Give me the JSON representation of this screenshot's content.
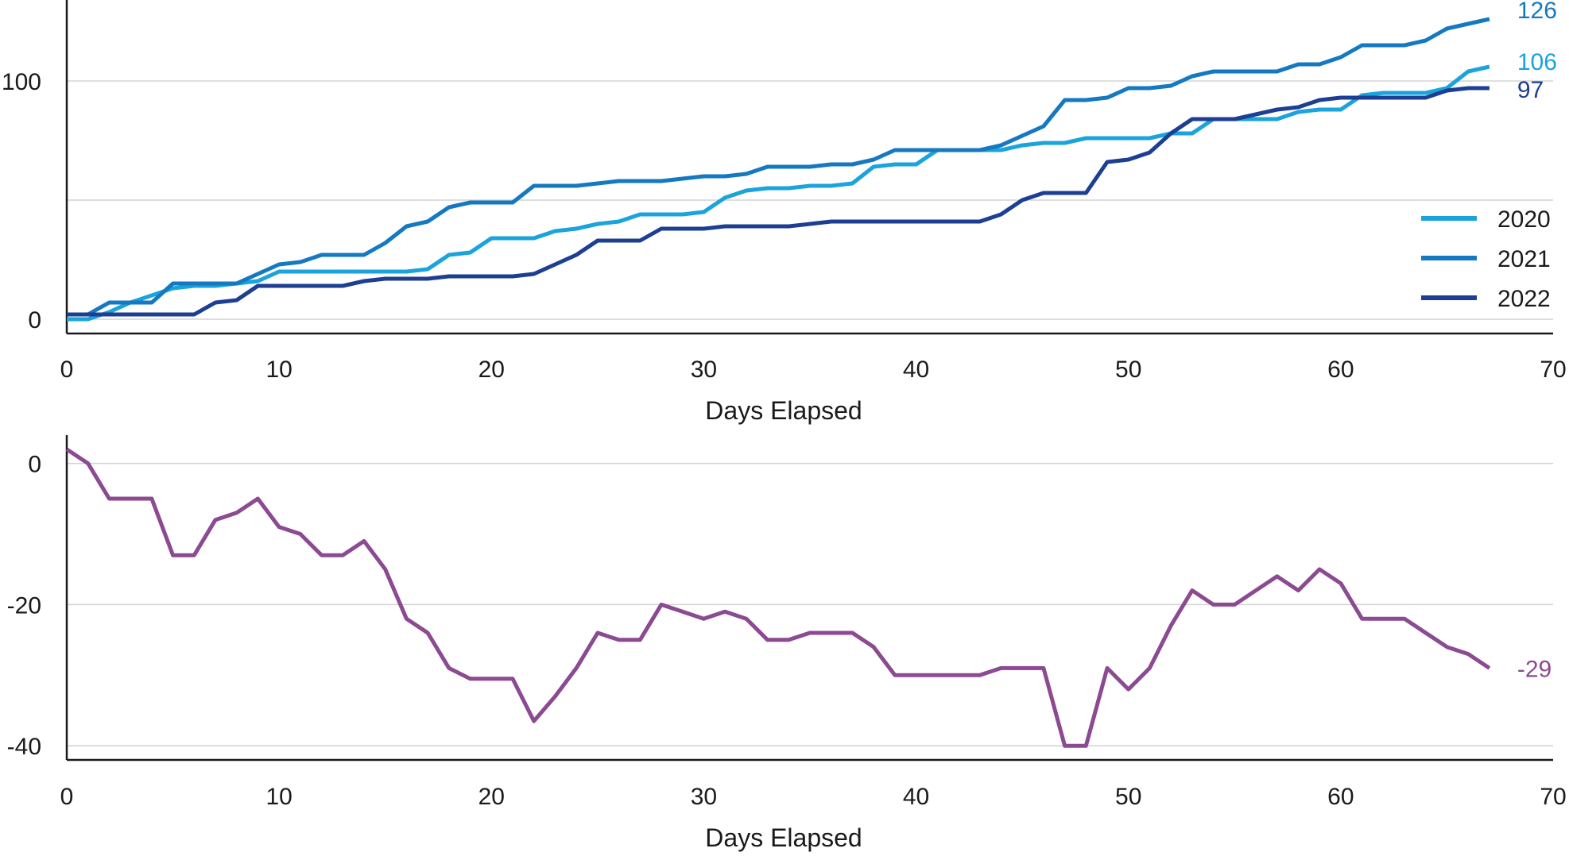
{
  "chart_data": [
    {
      "type": "line",
      "xlabel": "Days Elapsed",
      "ylabel": "",
      "xlim": [
        0,
        70
      ],
      "ylim": [
        -6,
        134
      ],
      "xticks": [
        0,
        10,
        20,
        30,
        40,
        50,
        60,
        70
      ],
      "yticks": [
        0,
        100
      ],
      "grid": true,
      "legend": "bottom-right",
      "x": [
        0,
        1,
        2,
        3,
        4,
        5,
        6,
        7,
        8,
        9,
        10,
        11,
        12,
        13,
        14,
        15,
        16,
        17,
        18,
        19,
        20,
        21,
        22,
        23,
        24,
        25,
        26,
        27,
        28,
        29,
        30,
        31,
        32,
        33,
        34,
        35,
        36,
        37,
        38,
        39,
        40,
        41,
        42,
        43,
        44,
        45,
        46,
        47,
        48,
        49,
        50,
        51,
        52,
        53,
        54,
        55,
        56,
        57,
        58,
        59,
        60,
        61,
        62,
        63,
        64,
        65,
        66,
        67
      ],
      "series": [
        {
          "name": "2020",
          "color": "#1ba3dc",
          "end_label": "106",
          "values": [
            0,
            0,
            3,
            7,
            10,
            13,
            14,
            14,
            15,
            16,
            20,
            20,
            20,
            20,
            20,
            20,
            20,
            21,
            27,
            28,
            34,
            34,
            34,
            37,
            38,
            40,
            41,
            44,
            44,
            44,
            45,
            51,
            54,
            55,
            55,
            56,
            56,
            57,
            64,
            65,
            65,
            71,
            71,
            71,
            71,
            73,
            74,
            74,
            76,
            76,
            76,
            76,
            78,
            78,
            84,
            84,
            84,
            84,
            87,
            88,
            88,
            94,
            95,
            95,
            95,
            97,
            104,
            106
          ]
        },
        {
          "name": "2021",
          "color": "#1479c0",
          "end_label": "126",
          "values": [
            2,
            2,
            7,
            7,
            7,
            15,
            15,
            15,
            15,
            19,
            23,
            24,
            27,
            27,
            27,
            32,
            39,
            41,
            47,
            49,
            49,
            49,
            56,
            56,
            56,
            57,
            58,
            58,
            58,
            59,
            60,
            60,
            61,
            64,
            64,
            64,
            65,
            65,
            67,
            71,
            71,
            71,
            71,
            71,
            73,
            77,
            81,
            92,
            92,
            93,
            97,
            97,
            98,
            102,
            104,
            104,
            104,
            104,
            107,
            107,
            110,
            115,
            115,
            115,
            117,
            122,
            124,
            126
          ]
        },
        {
          "name": "2022",
          "color": "#1d3f93",
          "end_label": "97",
          "values": [
            2,
            2,
            2,
            2,
            2,
            2,
            2,
            7,
            8,
            14,
            14,
            14,
            14,
            14,
            16,
            17,
            17,
            17,
            18,
            18,
            18,
            18,
            19,
            23,
            27,
            33,
            33,
            33,
            38,
            38,
            38,
            39,
            39,
            39,
            39,
            40,
            41,
            41,
            41,
            41,
            41,
            41,
            41,
            41,
            44,
            50,
            53,
            53,
            53,
            66,
            67,
            70,
            78,
            84,
            84,
            84,
            86,
            88,
            89,
            92,
            93,
            93,
            93,
            93,
            93,
            96,
            97,
            97
          ]
        }
      ]
    },
    {
      "type": "line",
      "xlabel": "Days Elapsed",
      "ylabel": "",
      "xlim": [
        0,
        70
      ],
      "ylim": [
        -42,
        4
      ],
      "xticks": [
        0,
        10,
        20,
        30,
        40,
        50,
        60,
        70
      ],
      "yticks": [
        0,
        -20,
        -40
      ],
      "grid": true,
      "legend": "none",
      "x": [
        0,
        1,
        2,
        3,
        4,
        5,
        6,
        7,
        8,
        9,
        10,
        11,
        12,
        13,
        14,
        15,
        16,
        17,
        18,
        19,
        20,
        21,
        22,
        23,
        24,
        25,
        26,
        27,
        28,
        29,
        30,
        31,
        32,
        33,
        34,
        35,
        36,
        37,
        38,
        39,
        40,
        41,
        42,
        43,
        44,
        45,
        46,
        47,
        48,
        49,
        50,
        51,
        52,
        53,
        54,
        55,
        56,
        57,
        58,
        59,
        60,
        61,
        62,
        63,
        64,
        65,
        66,
        67
      ],
      "series": [
        {
          "name": "",
          "color": "#8b4a91",
          "end_label": "-29",
          "values": [
            2,
            0,
            -5,
            -5,
            -5,
            -13,
            -13,
            -8,
            -7,
            -5,
            -9,
            -10,
            -13,
            -13,
            -11,
            -15,
            -22,
            -24,
            -29,
            -30.5,
            -30.5,
            -30.5,
            -36.5,
            -33,
            -29,
            -24,
            -25,
            -25,
            -20,
            -21,
            -22,
            -21,
            -22,
            -25,
            -25,
            -24,
            -24,
            -24,
            -26,
            -30,
            -30,
            -30,
            -30,
            -30,
            -29,
            -29,
            -29,
            -40,
            -40,
            -29,
            -32,
            -29,
            -23,
            -18,
            -20,
            -20,
            -18,
            -16,
            -18,
            -15,
            -17,
            -22,
            -22,
            -22,
            -24,
            -26,
            -27,
            -29
          ]
        }
      ]
    }
  ]
}
